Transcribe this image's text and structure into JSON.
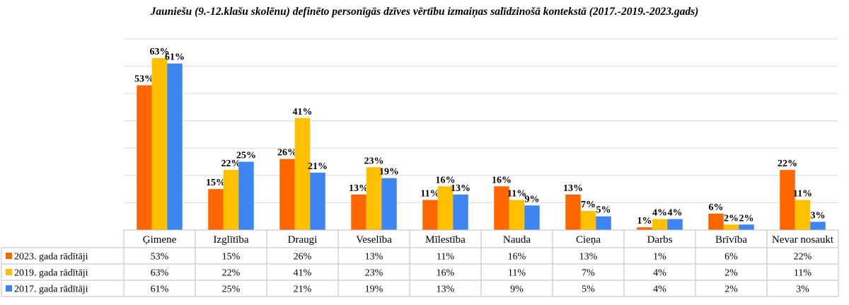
{
  "chart_data": {
    "type": "bar",
    "title": "Jauniešu (9.-12.klašu skolēnu) definēto personīgās dzīves vērtību izmaiņas salīdzinošā kontekstā (2017.-2019.-2023.gads)",
    "categories": [
      "Ģimene",
      "Izglītība",
      "Draugi",
      "Veselība",
      "Mīlestība",
      "Nauda",
      "Cieņa",
      "Darbs",
      "Brīvība",
      "Nevar nosaukt"
    ],
    "unit": "%",
    "ylim": [
      0,
      70
    ],
    "grid": true,
    "legend": "data table below chart",
    "series": [
      {
        "name": "2023. gada rādītāji",
        "color": "#ff6600",
        "values": [
          53,
          15,
          26,
          13,
          11,
          16,
          13,
          1,
          6,
          22
        ]
      },
      {
        "name": "2019. gada rādītāji",
        "color": "#ffc000",
        "values": [
          63,
          22,
          41,
          23,
          16,
          11,
          7,
          4,
          2,
          11
        ]
      },
      {
        "name": "2017. gada rādītāji",
        "color": "#3d85f0",
        "values": [
          61,
          25,
          21,
          19,
          13,
          9,
          5,
          4,
          2,
          3
        ]
      }
    ]
  }
}
